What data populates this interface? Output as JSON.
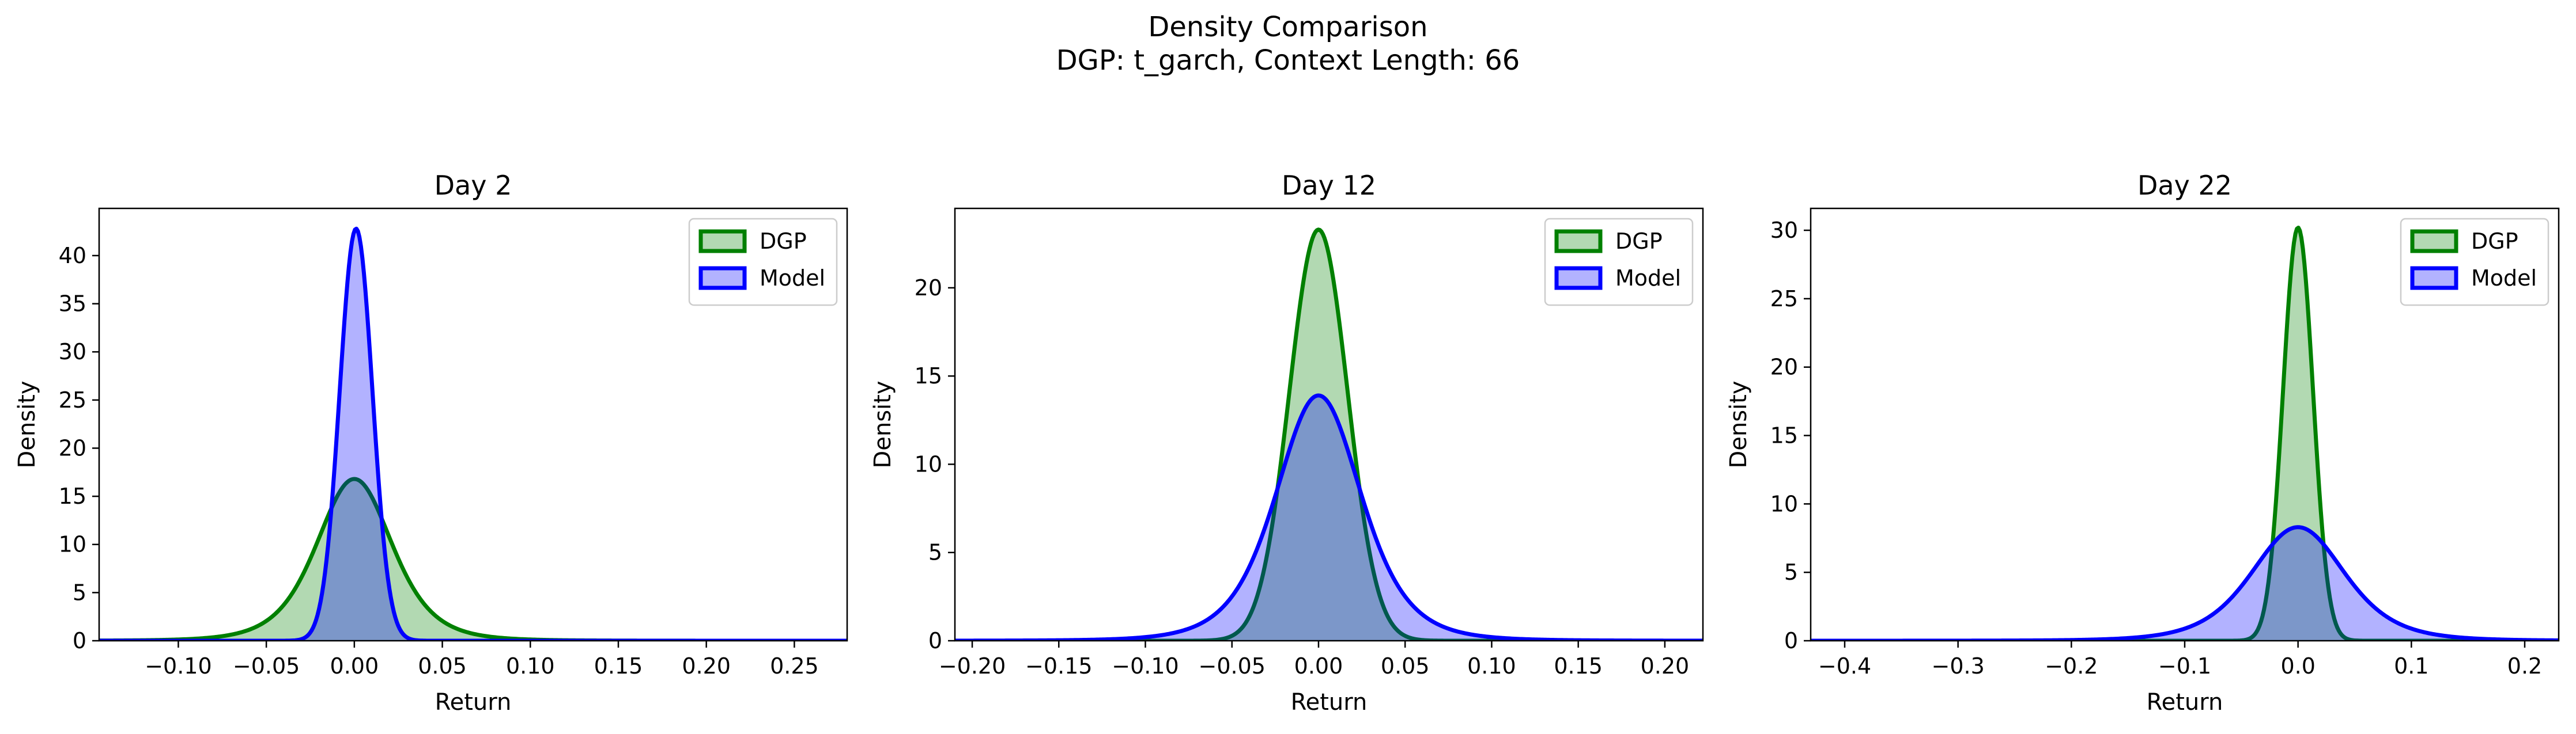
{
  "figure": {
    "title": "Density Comparison",
    "subtitle": "DGP: t_garch, Context Length: 66"
  },
  "colors": {
    "dgp_line": "#008000",
    "dgp_fill": "#008000",
    "model_line": "#0000ff",
    "model_fill": "#0000ff"
  },
  "chart_data": [
    {
      "type": "area",
      "title": "Day 2",
      "xlabel": "Return",
      "ylabel": "Density",
      "xlim": [
        -0.145,
        0.28
      ],
      "ylim": [
        0,
        44.9
      ],
      "xticks": [
        -0.1,
        -0.05,
        0.0,
        0.05,
        0.1,
        0.15,
        0.2,
        0.25
      ],
      "xtick_labels": [
        "−0.10",
        "−0.05",
        "0.00",
        "0.05",
        "0.10",
        "0.15",
        "0.20",
        "0.25"
      ],
      "yticks": [
        0,
        5,
        10,
        15,
        20,
        25,
        30,
        35,
        40
      ],
      "ytick_labels": [
        "0",
        "5",
        "10",
        "15",
        "20",
        "25",
        "30",
        "35",
        "40"
      ],
      "legend": "top-right",
      "series": [
        {
          "name": "DGP",
          "kind": "student_t",
          "loc": 0.0,
          "peak": 16.8,
          "scale": 0.0222,
          "df": 5
        },
        {
          "name": "Model",
          "kind": "normal",
          "loc": 0.001,
          "peak": 42.8,
          "scale": 0.0093
        }
      ]
    },
    {
      "type": "area",
      "title": "Day 12",
      "xlabel": "Return",
      "ylabel": "Density",
      "xlim": [
        -0.21,
        0.222
      ],
      "ylim": [
        0,
        24.5
      ],
      "xticks": [
        -0.2,
        -0.15,
        -0.1,
        -0.05,
        0.0,
        0.05,
        0.1,
        0.15,
        0.2
      ],
      "xtick_labels": [
        "−0.20",
        "−0.15",
        "−0.10",
        "−0.05",
        "0.00",
        "0.05",
        "0.10",
        "0.15",
        "0.20"
      ],
      "yticks": [
        0,
        5,
        10,
        15,
        20
      ],
      "ytick_labels": [
        "0",
        "5",
        "10",
        "15",
        "20"
      ],
      "legend": "top-right",
      "series": [
        {
          "name": "DGP",
          "kind": "normal",
          "loc": 0.0,
          "peak": 23.3,
          "scale": 0.0168
        },
        {
          "name": "Model",
          "kind": "student_t",
          "loc": 0.0,
          "peak": 13.9,
          "scale": 0.0255,
          "df": 5
        }
      ]
    },
    {
      "type": "area",
      "title": "Day 22",
      "xlabel": "Return",
      "ylabel": "Density",
      "xlim": [
        -0.43,
        0.23
      ],
      "ylim": [
        0,
        31.6
      ],
      "xticks": [
        -0.4,
        -0.3,
        -0.2,
        -0.1,
        0.0,
        0.1,
        0.2
      ],
      "xtick_labels": [
        "−0.4",
        "−0.3",
        "−0.2",
        "−0.1",
        "0.0",
        "0.1",
        "0.2"
      ],
      "yticks": [
        0,
        5,
        10,
        15,
        20,
        25,
        30
      ],
      "ytick_labels": [
        "0",
        "5",
        "10",
        "15",
        "20",
        "25",
        "30"
      ],
      "legend": "top-right",
      "series": [
        {
          "name": "DGP",
          "kind": "normal",
          "loc": 0.0,
          "peak": 30.2,
          "scale": 0.0132
        },
        {
          "name": "Model",
          "kind": "student_t",
          "loc": 0.0,
          "peak": 8.3,
          "scale": 0.0425,
          "df": 5
        }
      ]
    }
  ]
}
